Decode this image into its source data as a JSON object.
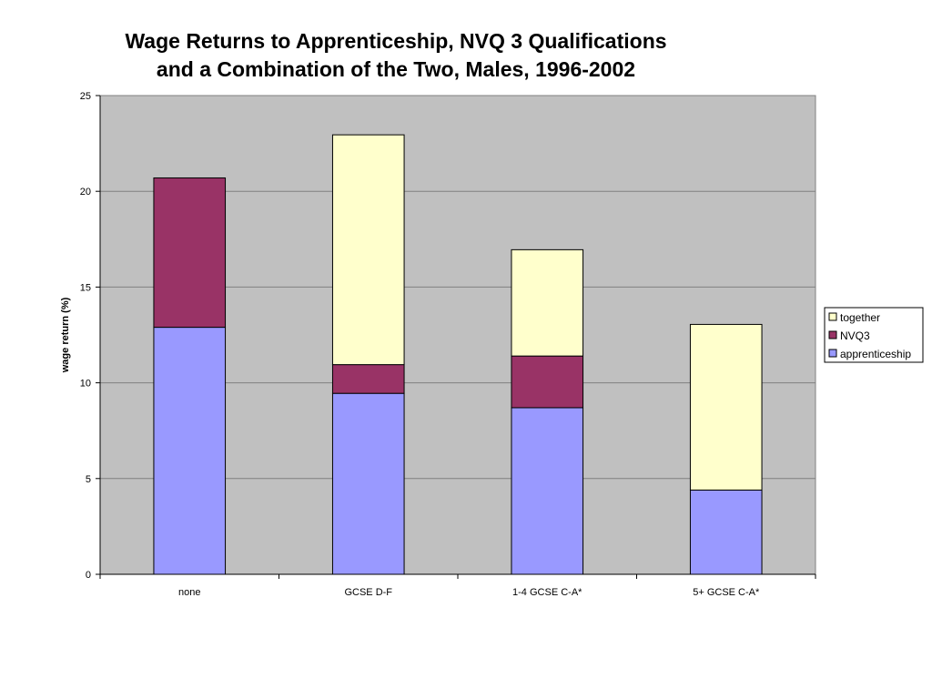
{
  "chart_data": {
    "type": "bar",
    "stacked": true,
    "title_lines": [
      "Wage Returns to Apprenticeship, NVQ 3 Qualifications",
      " and a Combination of the Two, Males, 1996-2002"
    ],
    "xlabel": "",
    "ylabel": "wage return (%)",
    "ylim": [
      0,
      25
    ],
    "yticks": [
      0,
      5,
      10,
      15,
      20,
      25
    ],
    "grid": true,
    "legend_position": "right",
    "categories": [
      "none",
      "GCSE D-F",
      "1-4 GCSE C-A*",
      "5+ GCSE C-A*"
    ],
    "series": [
      {
        "name": "apprenticeship",
        "color": "#9999ff",
        "values": [
          12.9,
          9.45,
          8.7,
          4.4
        ]
      },
      {
        "name": "NVQ3",
        "color": "#993366",
        "values": [
          7.8,
          1.5,
          2.7,
          0
        ]
      },
      {
        "name": "together",
        "color": "#ffffcc",
        "values": [
          0,
          12.0,
          5.55,
          8.65
        ]
      }
    ],
    "legend_order": [
      "together",
      "NVQ3",
      "apprenticeship"
    ],
    "plot_background": "#c0c0c0"
  }
}
